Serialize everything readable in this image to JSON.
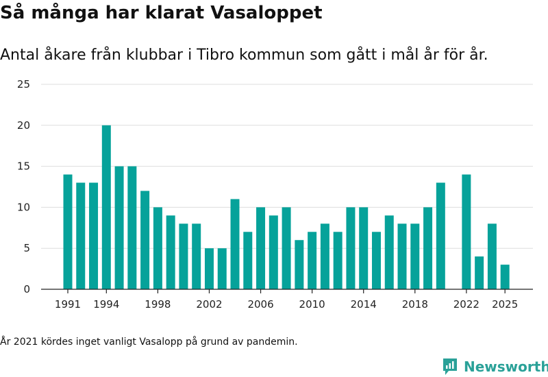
{
  "title": "Så många har klarat Vasaloppet",
  "subtitle": "Antal åkare från klubbar i Tibro kommun som gått i mål år för år.",
  "footnote": "År 2021 kördes inget vanligt Vasalopp på grund av pandemin.",
  "brand": {
    "name": "Newsworthy",
    "icon": "newsworthy-logo-icon",
    "color": "#2a9d8f"
  },
  "colors": {
    "bar": "#06a29a",
    "grid": "#dddddd",
    "axis": "#222222",
    "text": "#222222"
  },
  "chart_data": {
    "type": "bar",
    "x": [
      1991,
      1992,
      1993,
      1994,
      1995,
      1996,
      1997,
      1998,
      1999,
      2000,
      2001,
      2002,
      2003,
      2004,
      2005,
      2006,
      2007,
      2008,
      2009,
      2010,
      2011,
      2012,
      2013,
      2014,
      2015,
      2016,
      2017,
      2018,
      2019,
      2020,
      2021,
      2022,
      2023,
      2024,
      2025
    ],
    "values": [
      14,
      13,
      13,
      20,
      15,
      15,
      12,
      10,
      9,
      8,
      8,
      5,
      5,
      11,
      7,
      10,
      9,
      10,
      6,
      7,
      8,
      7,
      10,
      10,
      7,
      9,
      8,
      8,
      10,
      13,
      null,
      14,
      4,
      8,
      3
    ],
    "xticks": [
      1991,
      1994,
      1998,
      2002,
      2006,
      2010,
      2014,
      2018,
      2022,
      2025
    ],
    "yticks": [
      0,
      5,
      10,
      15,
      20,
      25
    ],
    "ylim": [
      0,
      25
    ],
    "xlabel": "",
    "ylabel": "",
    "grid": true
  }
}
